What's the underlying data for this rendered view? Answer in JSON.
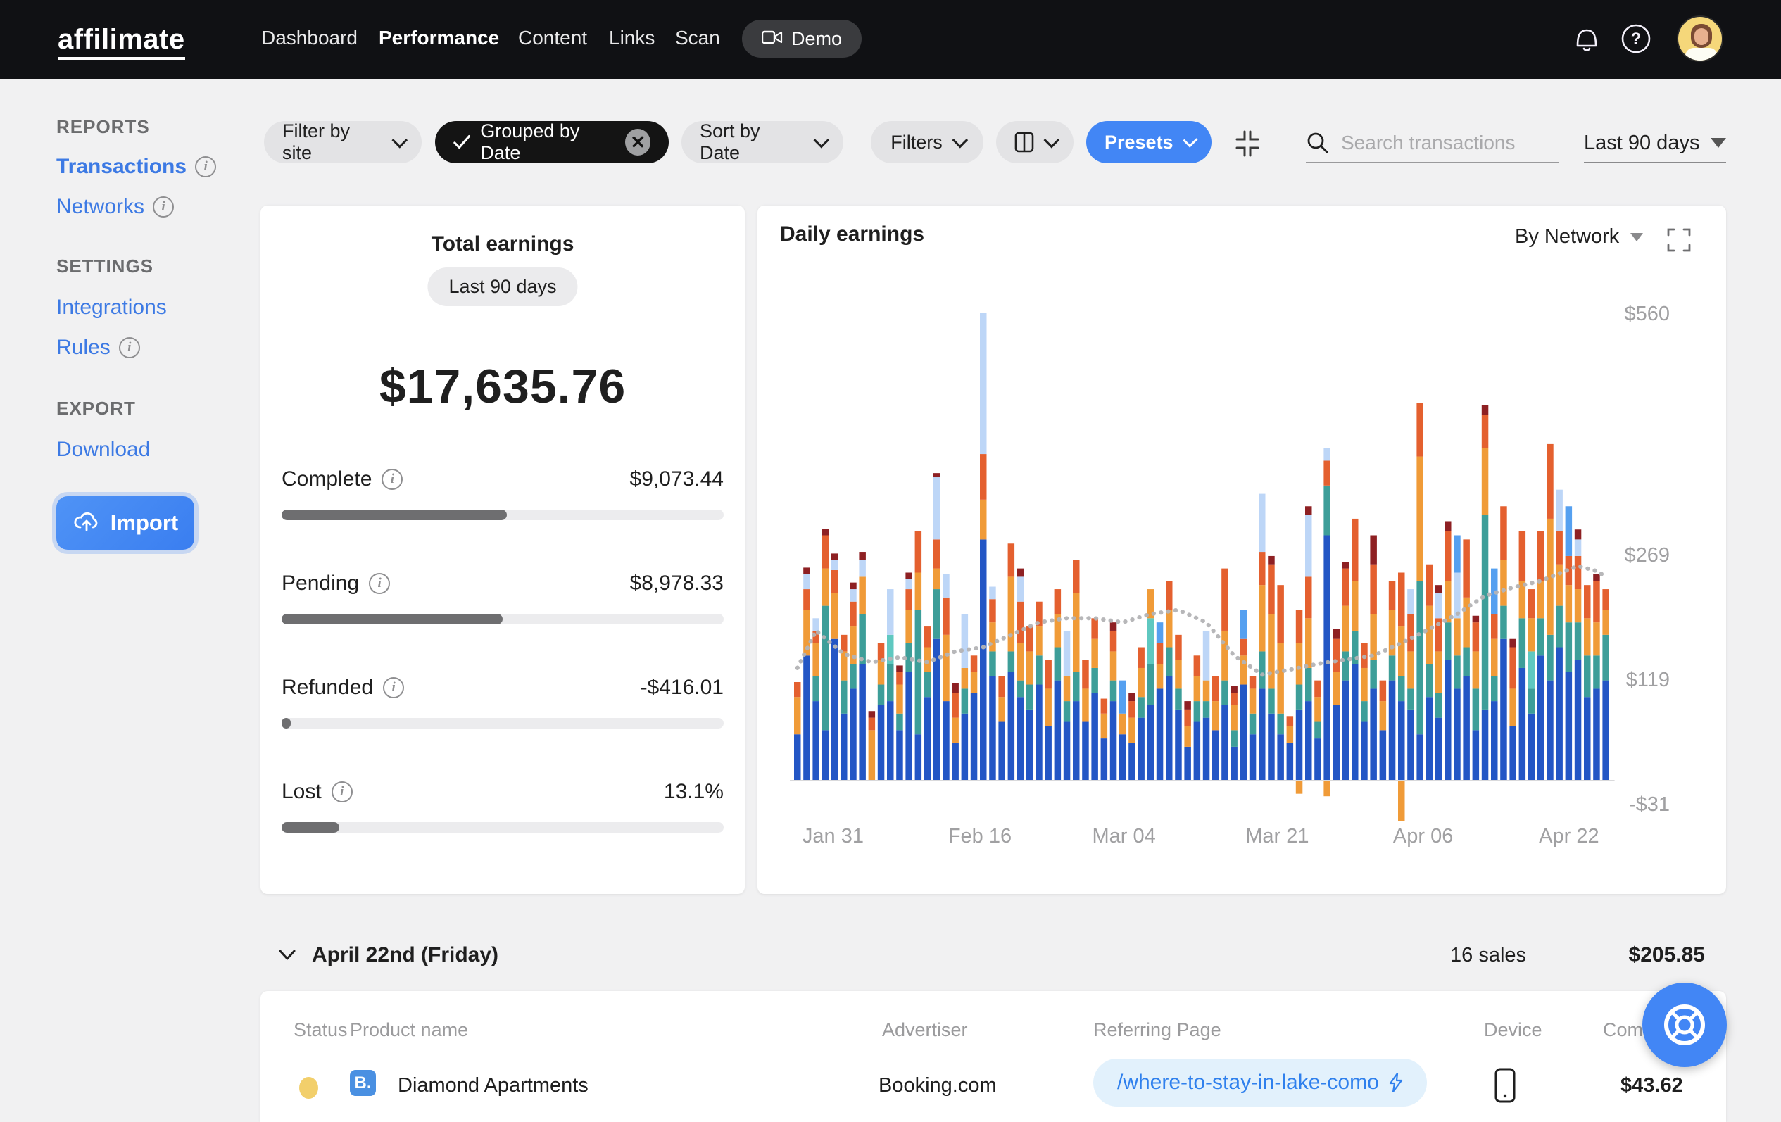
{
  "nav": {
    "logo": "affilimate",
    "items": [
      {
        "label": "Dashboard"
      },
      {
        "label": "Performance"
      },
      {
        "label": "Content"
      },
      {
        "label": "Links"
      },
      {
        "label": "Scan"
      }
    ],
    "demo_label": "Demo"
  },
  "sidebar": {
    "sections": [
      {
        "title": "REPORTS"
      },
      {
        "title": "SETTINGS"
      },
      {
        "title": "EXPORT"
      }
    ],
    "links": {
      "transactions": "Transactions",
      "networks": "Networks",
      "integrations": "Integrations",
      "rules": "Rules",
      "download": "Download"
    },
    "import_label": "Import"
  },
  "toolbar": {
    "filter_by_site": "Filter by site",
    "grouped_by_date": "Grouped by Date",
    "sort_by_date": "Sort by Date",
    "filters": "Filters",
    "presets": "Presets",
    "search_placeholder": "Search transactions",
    "date_range": "Last 90 days"
  },
  "totals": {
    "title": "Total earnings",
    "period": "Last 90 days",
    "amount": "$17,635.76",
    "rows": [
      {
        "label": "Complete",
        "value": "$9,073.44",
        "pct": 51
      },
      {
        "label": "Pending",
        "value": "$8,978.33",
        "pct": 50
      },
      {
        "label": "Refunded",
        "value": "-$416.01",
        "pct": 2
      },
      {
        "label": "Lost",
        "value": "13.1%",
        "pct": 13
      }
    ]
  },
  "daily": {
    "title": "Daily earnings",
    "group_by": "By Network"
  },
  "chart_data": {
    "type": "bar",
    "title": "Daily earnings",
    "stack_order": [
      "n",
      "t",
      "lt",
      "o",
      "r",
      "lb",
      "bb",
      "m"
    ],
    "series_names": {
      "n": "network-navy",
      "t": "network-teal",
      "lt": "network-light-teal",
      "o": "network-orange",
      "r": "network-red-orange",
      "lb": "network-light-blue",
      "bb": "network-bright-blue",
      "m": "network-maroon"
    },
    "colors": {
      "n": "#2356c5",
      "t": "#3d9e99",
      "lt": "#5fc8c0",
      "o": "#f09b38",
      "r": "#e4602f",
      "lb": "#bdd6f7",
      "bb": "#55a0f0",
      "m": "#8e2023"
    },
    "ylim": [
      -31,
      560
    ],
    "y_ticks": [
      {
        "label": "$560",
        "value": 560
      },
      {
        "label": "$269",
        "value": 269
      },
      {
        "label": "$119",
        "value": 119
      },
      {
        "label": "-$31",
        "value": -31
      }
    ],
    "x_ticks": [
      {
        "label": "Jan 31",
        "i": 4.2
      },
      {
        "label": "Feb 16",
        "i": 20
      },
      {
        "label": "Mar 04",
        "i": 35.5
      },
      {
        "label": "Mar 21",
        "i": 52
      },
      {
        "label": "Apr 06",
        "i": 67.7
      },
      {
        "label": "Apr 22",
        "i": 83.4
      }
    ],
    "bars": [
      {
        "n": 55,
        "o": 45,
        "r": 18
      },
      {
        "n": 150,
        "o": 55,
        "r": 25,
        "lb": 18,
        "m": 8
      },
      {
        "n": 95,
        "t": 30,
        "o": 40,
        "r": 15,
        "lb": 15
      },
      {
        "n": 60,
        "t": 150,
        "o": 45,
        "r": 40,
        "m": 8
      },
      {
        "n": 170,
        "o": 55,
        "r": 28,
        "lb": 12,
        "m": 8
      },
      {
        "n": 80,
        "t": 40,
        "o": 35,
        "r": 20
      },
      {
        "n": 110,
        "t": 30,
        "o": 45,
        "r": 30,
        "lb": 15,
        "m": 8
      },
      {
        "n": 140,
        "t": 60,
        "o": 45,
        "lb": 20,
        "m": 10
      },
      {
        "o": 60,
        "r": 15,
        "m": 8
      },
      {
        "n": 90,
        "t": 25,
        "o": 30,
        "r": 20
      },
      {
        "n": 95,
        "t": 45,
        "lt": 35,
        "lb": 55
      },
      {
        "n": 60,
        "t": 20,
        "o": 35,
        "r": 15,
        "m": 8
      },
      {
        "n": 130,
        "t": 35,
        "o": 40,
        "r": 25,
        "lb": 12,
        "m": 8
      },
      {
        "n": 55,
        "t": 150,
        "o": 45,
        "r": 50
      },
      {
        "n": 100,
        "t": 30,
        "o": 30,
        "r": 25
      },
      {
        "n": 170,
        "t": 60,
        "o": 25,
        "r": 35,
        "lb": 75,
        "m": 5
      },
      {
        "n": 95,
        "o": 80,
        "r": 45,
        "lb": 28
      },
      {
        "n": 45,
        "o": 30,
        "r": 30,
        "m": 12
      },
      {
        "n": 80,
        "t": 30,
        "o": 25,
        "lb": 65
      },
      {
        "n": 105,
        "o": 25,
        "r": 20
      },
      {
        "n": 290,
        "o": 48,
        "r": 55,
        "lb": 170
      },
      {
        "n": 125,
        "t": 30,
        "o": 35,
        "r": 28,
        "lb": 15
      },
      {
        "n": 70,
        "o": 30,
        "r": 25
      },
      {
        "n": 130,
        "t": 25,
        "o": 90,
        "r": 40
      },
      {
        "n": 100,
        "t": 20,
        "o": 45,
        "r": 50,
        "lb": 30,
        "m": 10
      },
      {
        "n": 85,
        "t": 30,
        "o": 40,
        "r": 30
      },
      {
        "n": 115,
        "t": 35,
        "o": 35,
        "r": 30
      },
      {
        "n": 65,
        "o": 45,
        "r": 35
      },
      {
        "n": 120,
        "t": 40,
        "o": 40,
        "r": 30
      },
      {
        "n": 70,
        "t": 25,
        "o": 30,
        "lb": 55
      },
      {
        "n": 95,
        "t": 35,
        "o": 95,
        "r": 40
      },
      {
        "n": 70,
        "o": 40,
        "r": 35
      },
      {
        "n": 105,
        "t": 30,
        "o": 35,
        "r": 25
      },
      {
        "n": 50,
        "o": 30,
        "r": 18
      },
      {
        "n": 95,
        "t": 25,
        "o": 35,
        "r": 25,
        "m": 10
      },
      {
        "n": 55,
        "o": 25,
        "bb": 40
      },
      {
        "n": 45,
        "o": 30,
        "r": 20,
        "m": 10
      },
      {
        "n": 75,
        "t": 25,
        "o": 35,
        "r": 25
      },
      {
        "n": 90,
        "t": 50,
        "lt": 55,
        "o": 35
      },
      {
        "n": 110,
        "o": 30,
        "r": 25,
        "bb": 25
      },
      {
        "n": 125,
        "t": 35,
        "o": 45,
        "r": 35
      },
      {
        "n": 85,
        "t": 25,
        "o": 35,
        "r": 30
      },
      {
        "n": 40,
        "o": 25,
        "r": 20,
        "m": 10
      },
      {
        "n": 70,
        "t": 25,
        "o": 30,
        "r": 25
      },
      {
        "n": 75,
        "t": 20,
        "o": 25,
        "lb": 60
      },
      {
        "n": 60,
        "o": 35,
        "r": 30
      },
      {
        "n": 90,
        "t": 30,
        "o": 60,
        "r": 75
      },
      {
        "n": 40,
        "t": 20,
        "o": 30,
        "r": 15,
        "m": 8
      },
      {
        "n": 115,
        "o": 35,
        "r": 20,
        "bb": 35
      },
      {
        "n": 55,
        "t": 25,
        "o": 30,
        "r": 15
      },
      {
        "n": 110,
        "t": 45,
        "o": 80,
        "r": 40,
        "lb": 70
      },
      {
        "n": 80,
        "t": 30,
        "o": 90,
        "r": 60,
        "m": 10
      },
      {
        "n": 55,
        "t": 25,
        "o": 85,
        "r": 70
      },
      {
        "n": 45,
        "o": 20,
        "r": 12
      },
      {
        "n": 85,
        "t": 30,
        "o": 50,
        "r": 40,
        "neg": 15
      },
      {
        "n": 95,
        "t": 40,
        "o": 60,
        "r": 50,
        "lb": 75,
        "m": 10
      },
      {
        "n": 50,
        "t": 20,
        "o": 30,
        "r": 20
      },
      {
        "n": 295,
        "t": 60,
        "r": 30,
        "lb": 15,
        "neg": 18
      },
      {
        "n": 90,
        "o": 40,
        "r": 40,
        "m": 12
      },
      {
        "n": 120,
        "t": 35,
        "o": 55,
        "r": 45,
        "m": 8
      },
      {
        "n": 140,
        "t": 40,
        "o": 60,
        "r": 75
      },
      {
        "n": 70,
        "t": 25,
        "o": 40,
        "r": 30
      },
      {
        "n": 110,
        "t": 35,
        "o": 55,
        "r": 60,
        "m": 35
      },
      {
        "n": 60,
        "o": 35,
        "r": 25
      },
      {
        "n": 120,
        "t": 30,
        "o": 55,
        "r": 35
      },
      {
        "n": 95,
        "t": 30,
        "o": 60,
        "r": 65,
        "neg": 48
      },
      {
        "n": 85,
        "t": 25,
        "o": 45,
        "r": 45,
        "lb": 30
      },
      {
        "n": 55,
        "t": 185,
        "o": 150,
        "r": 65
      },
      {
        "n": 100,
        "t": 40,
        "o": 70,
        "r": 50
      },
      {
        "n": 75,
        "t": 30,
        "o": 50,
        "r": 40,
        "lb": 30,
        "m": 10
      },
      {
        "n": 145,
        "t": 45,
        "o": 50,
        "r": 60,
        "m": 12
      },
      {
        "n": 110,
        "t": 40,
        "o": 45,
        "lb": 55,
        "bb": 45
      },
      {
        "n": 125,
        "t": 35,
        "o": 60,
        "r": 70
      },
      {
        "n": 60,
        "t": 50,
        "o": 45,
        "r": 35,
        "m": 8
      },
      {
        "n": 85,
        "t": 235,
        "o": 80,
        "r": 40,
        "m": 12
      },
      {
        "n": 95,
        "t": 30,
        "o": 45,
        "r": 30,
        "bb": 55
      },
      {
        "n": 170,
        "t": 40,
        "o": 55,
        "r": 65
      },
      {
        "n": 65,
        "o": 45,
        "r": 50,
        "m": 10
      },
      {
        "n": 135,
        "t": 60,
        "o": 45,
        "r": 60
      },
      {
        "n": 80,
        "t": 30,
        "lt": 45,
        "o": 40,
        "r": 35
      },
      {
        "n": 150,
        "t": 45,
        "o": 45,
        "r": 60
      },
      {
        "n": 120,
        "t": 55,
        "o": 140,
        "r": 90
      },
      {
        "n": 160,
        "t": 50,
        "o": 50,
        "r": 40,
        "lb": 50
      },
      {
        "n": 130,
        "t": 60,
        "o": 45,
        "r": 35,
        "bb": 60
      },
      {
        "n": 145,
        "t": 45,
        "o": 40,
        "r": 40,
        "lb": 20,
        "m": 12
      },
      {
        "n": 100,
        "t": 50,
        "o": 45,
        "r": 40
      },
      {
        "n": 110,
        "t": 40,
        "o": 40,
        "r": 50,
        "m": 8
      },
      {
        "n": 120,
        "t": 55,
        "o": 30,
        "r": 25
      }
    ],
    "trend_line": [
      [
        0,
        135
      ],
      [
        2,
        180
      ],
      [
        5,
        152
      ],
      [
        8,
        142
      ],
      [
        11,
        148
      ],
      [
        14,
        142
      ],
      [
        17,
        155
      ],
      [
        20,
        160
      ],
      [
        23,
        175
      ],
      [
        26,
        190
      ],
      [
        29,
        195
      ],
      [
        32,
        195
      ],
      [
        35,
        190
      ],
      [
        38,
        200
      ],
      [
        41,
        205
      ],
      [
        44,
        190
      ],
      [
        47,
        150
      ],
      [
        50,
        127
      ],
      [
        53,
        133
      ],
      [
        56,
        140
      ],
      [
        59,
        145
      ],
      [
        62,
        150
      ],
      [
        65,
        165
      ],
      [
        68,
        182
      ],
      [
        71,
        200
      ],
      [
        74,
        222
      ],
      [
        77,
        232
      ],
      [
        80,
        240
      ],
      [
        84,
        258
      ],
      [
        86,
        252
      ],
      [
        87,
        245
      ]
    ]
  },
  "day_group": {
    "title": "April 22nd (Friday)",
    "sales": "16 sales",
    "total": "$205.85"
  },
  "table": {
    "headers": [
      "Status",
      "Product name",
      "Advertiser",
      "Referring Page",
      "Device",
      "Commission"
    ],
    "row": {
      "product": "Diamond Apartments",
      "brand_initial": "B.",
      "advertiser": "Booking.com",
      "referring_page": "/where-to-stay-in-lake-como",
      "commission": "$43.62"
    }
  }
}
